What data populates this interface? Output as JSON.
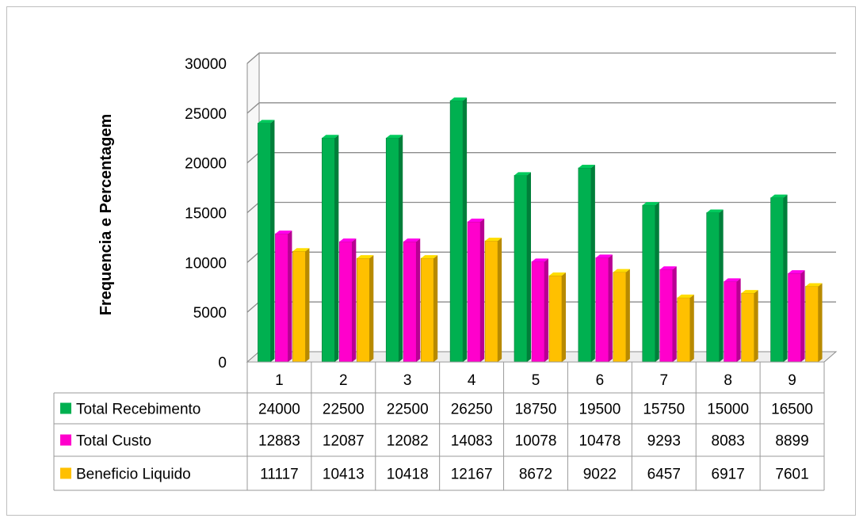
{
  "chart_data": {
    "type": "bar",
    "title": "",
    "xlabel": "",
    "ylabel": "Frequencia e Percentagem",
    "ylim": [
      0,
      30000
    ],
    "yticks": [
      0,
      5000,
      10000,
      15000,
      20000,
      25000,
      30000
    ],
    "grid": true,
    "legend": "data-table",
    "categories": [
      "1",
      "2",
      "3",
      "4",
      "5",
      "6",
      "7",
      "8",
      "9"
    ],
    "series": [
      {
        "name": "Total Recebimento",
        "color": "#00b050",
        "values": [
          24000,
          22500,
          22500,
          26250,
          18750,
          19500,
          15750,
          15000,
          16500
        ]
      },
      {
        "name": "Total Custo",
        "color": "#ff00cc",
        "values": [
          12883,
          12087,
          12082,
          14083,
          10078,
          10478,
          9293,
          8083,
          8899
        ]
      },
      {
        "name": "Beneficio Liquido",
        "color": "#ffc000",
        "values": [
          11117,
          10413,
          10418,
          12167,
          8672,
          9022,
          6457,
          6917,
          7601
        ]
      }
    ]
  }
}
